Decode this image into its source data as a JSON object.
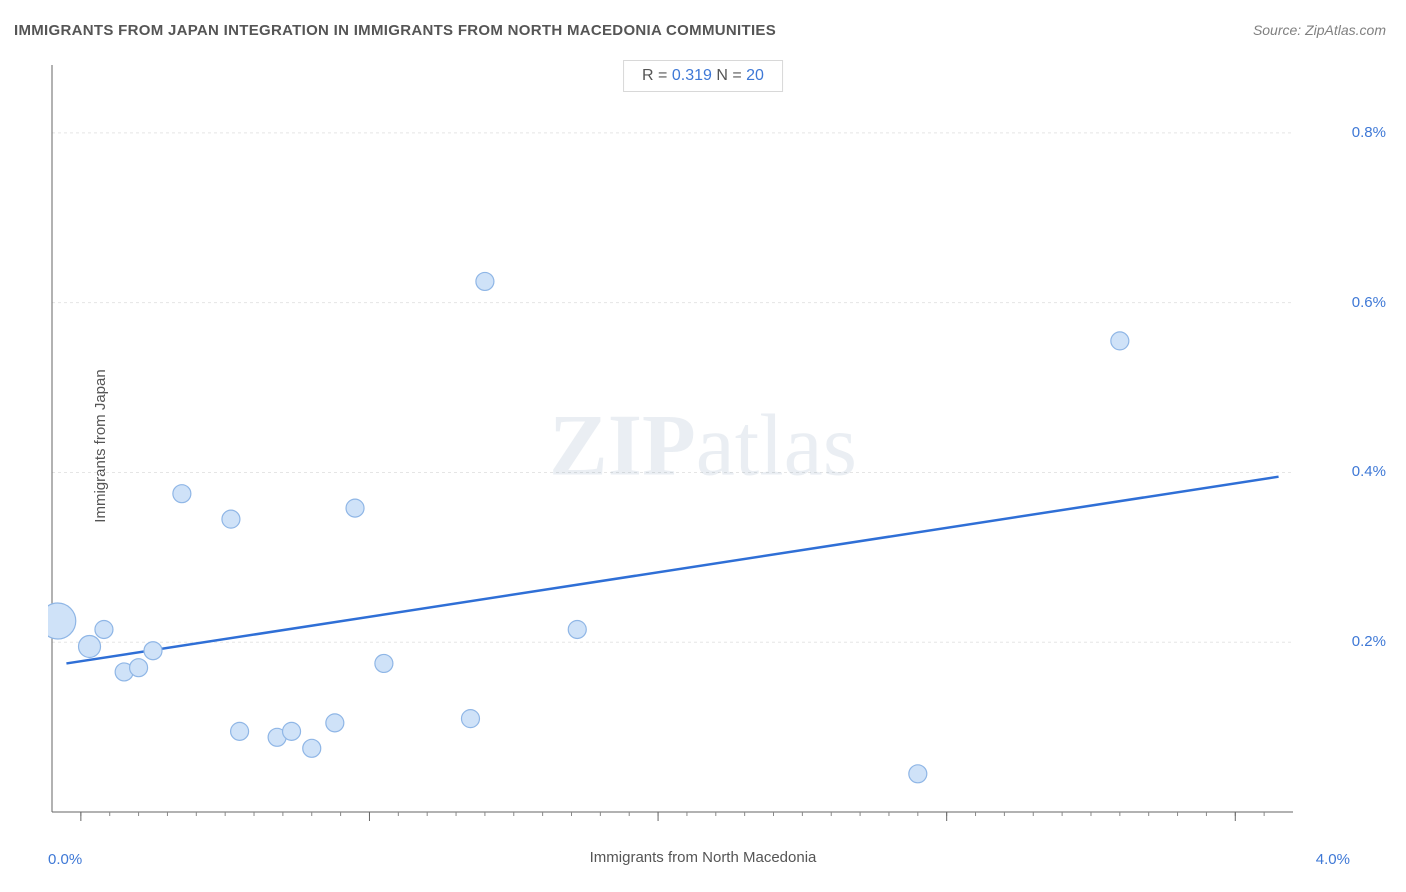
{
  "title": "IMMIGRANTS FROM JAPAN INTEGRATION IN IMMIGRANTS FROM NORTH MACEDONIA COMMUNITIES",
  "source": "Source: ZipAtlas.com",
  "legend": {
    "r_label": "R = ",
    "r_value": "0.319",
    "n_label": "   N = ",
    "n_value": "20"
  },
  "watermark": {
    "z": "ZIP",
    "a": "atlas"
  },
  "axes": {
    "x_label": "Immigrants from North Macedonia",
    "y_label": "Immigrants from Japan",
    "x_min_label": "0.0%",
    "x_max_label": "4.0%",
    "y_ticks": [
      {
        "value": 0.2,
        "label": "0.2%"
      },
      {
        "value": 0.4,
        "label": "0.4%"
      },
      {
        "value": 0.6,
        "label": "0.6%"
      },
      {
        "value": 0.8,
        "label": "0.8%"
      }
    ]
  },
  "chart": {
    "type": "scatter",
    "xlim": [
      -0.1,
      4.2
    ],
    "ylim": [
      0.0,
      0.88
    ],
    "background_color": "#ffffff",
    "grid_color": "#e5e5e5",
    "grid_dash": "3,3",
    "axis_line_color": "#666666",
    "tick_color": "#888888",
    "marker_fill": "#cfe2f8",
    "marker_stroke": "#8fb6e6",
    "marker_stroke_width": 1.2,
    "marker_default_r": 9,
    "trend_line_color": "#2f6fd6",
    "trend_line_width": 2.5,
    "trend_line": {
      "x1": -0.05,
      "y1": 0.175,
      "x2": 4.15,
      "y2": 0.395
    },
    "points": [
      {
        "x": -0.08,
        "y": 0.225,
        "r": 18
      },
      {
        "x": 0.03,
        "y": 0.195,
        "r": 11
      },
      {
        "x": 0.08,
        "y": 0.215,
        "r": 9
      },
      {
        "x": 0.15,
        "y": 0.165,
        "r": 9
      },
      {
        "x": 0.2,
        "y": 0.17,
        "r": 9
      },
      {
        "x": 0.25,
        "y": 0.19,
        "r": 9
      },
      {
        "x": 0.35,
        "y": 0.375,
        "r": 9
      },
      {
        "x": 0.52,
        "y": 0.345,
        "r": 9
      },
      {
        "x": 0.55,
        "y": 0.095,
        "r": 9
      },
      {
        "x": 0.68,
        "y": 0.088,
        "r": 9
      },
      {
        "x": 0.73,
        "y": 0.095,
        "r": 9
      },
      {
        "x": 0.8,
        "y": 0.075,
        "r": 9
      },
      {
        "x": 0.88,
        "y": 0.105,
        "r": 9
      },
      {
        "x": 0.95,
        "y": 0.358,
        "r": 9
      },
      {
        "x": 1.05,
        "y": 0.175,
        "r": 9
      },
      {
        "x": 1.35,
        "y": 0.11,
        "r": 9
      },
      {
        "x": 1.4,
        "y": 0.625,
        "r": 9
      },
      {
        "x": 1.72,
        "y": 0.215,
        "r": 9
      },
      {
        "x": 2.9,
        "y": 0.045,
        "r": 9
      },
      {
        "x": 3.6,
        "y": 0.555,
        "r": 9
      }
    ],
    "x_ticks_minor_step": 0.1,
    "x_ticks_major": [
      0,
      1,
      2,
      3,
      4
    ]
  }
}
